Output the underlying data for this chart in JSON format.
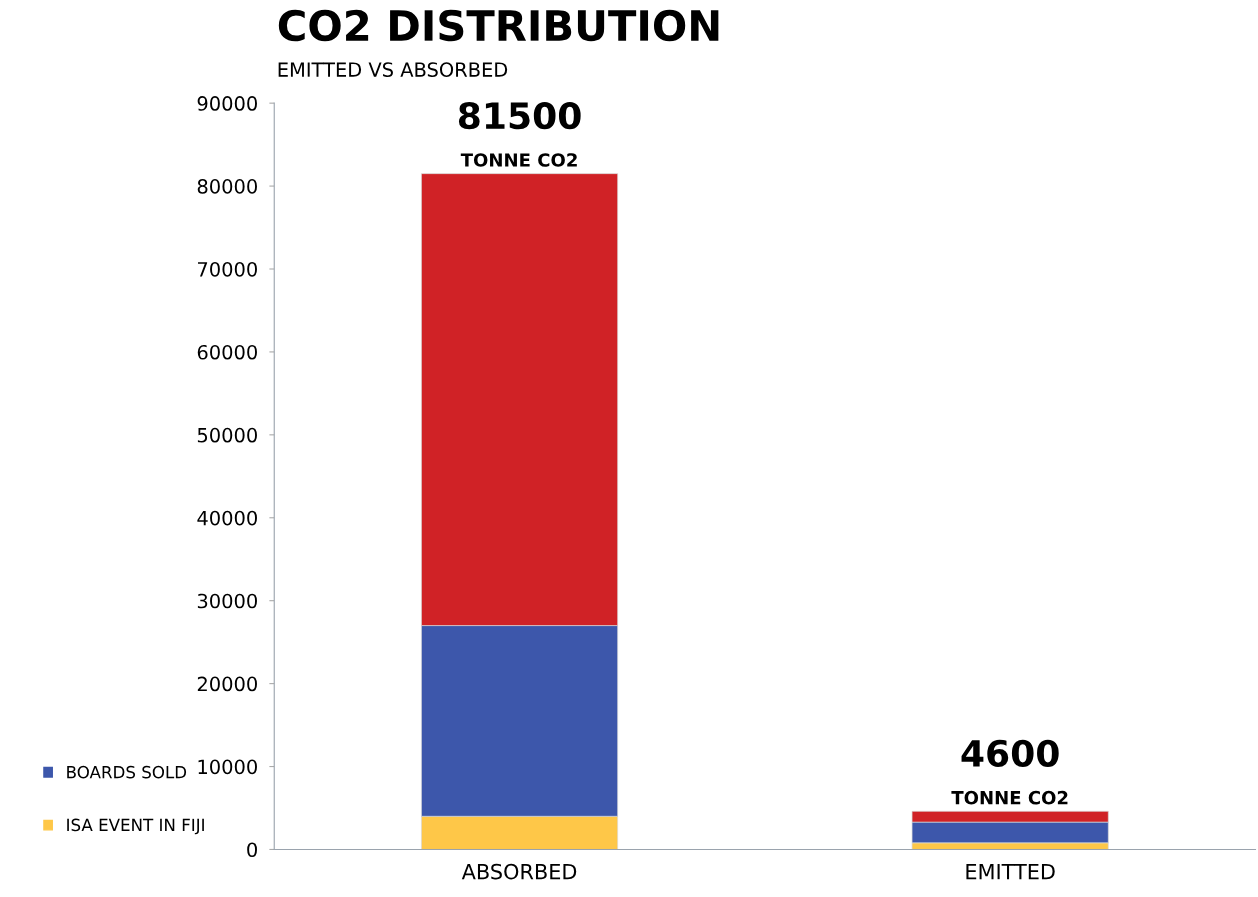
{
  "chart_data": {
    "type": "bar",
    "title": "CO2 DISTRIBUTION",
    "subtitle": "EMITTED VS ABSORBED",
    "categories": [
      "ABSORBED",
      "EMITTED"
    ],
    "stacked": true,
    "series": [
      {
        "name": "ISA EVENT IN FIJI",
        "color": "#fec748",
        "values": [
          4000,
          800
        ]
      },
      {
        "name": "BOARDS SOLD",
        "color": "#3d57ab",
        "values": [
          23000,
          2500
        ]
      },
      {
        "color": "#d02226",
        "values": [
          54500,
          1300
        ]
      }
    ],
    "totals": [
      "81500",
      "4600"
    ],
    "annotations": [
      {
        "text": "TONNE CO2",
        "x": "ABSORBED",
        "y": 81500
      },
      {
        "text": "TONNE CO2",
        "x": "EMITTED",
        "y": 4600
      }
    ],
    "ylim": [
      0,
      90000
    ],
    "yticks": [
      0,
      10000,
      20000,
      30000,
      40000,
      50000,
      60000,
      70000,
      80000,
      90000
    ],
    "grid": false,
    "legend": "bottom left"
  }
}
